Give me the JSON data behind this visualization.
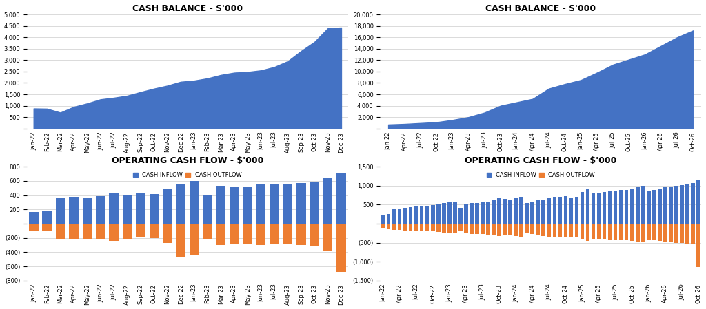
{
  "title_top_left": "CASH BALANCE - $'000",
  "title_top_right": "CASH BALANCE - $'000",
  "title_bot_left": "OPERATING CASH FLOW - $'000",
  "title_bot_right": "OPERATING CASH FLOW - $'000",
  "area_color": "#4472C4",
  "bar_inflow_color": "#4472C4",
  "bar_outflow_color": "#ED7D31",
  "background_color": "#FFFFFF",
  "gridline_color": "#CCCCCC",
  "tl_labels": [
    "Jan-22",
    "Feb-22",
    "Mar-22",
    "Apr-22",
    "May-22",
    "Jun-22",
    "Jul-22",
    "Aug-22",
    "Sep-22",
    "Oct-22",
    "Nov-22",
    "Dec-22",
    "Jan-23",
    "Feb-23",
    "Mar-23",
    "Apr-23",
    "May-23",
    "Jun-23",
    "Jul-23",
    "Aug-23",
    "Sep-23",
    "Oct-23",
    "Nov-23",
    "Dec-23"
  ],
  "tl_values": [
    880,
    870,
    700,
    950,
    1100,
    1280,
    1350,
    1440,
    1600,
    1750,
    1880,
    2050,
    2100,
    2200,
    2350,
    2450,
    2480,
    2550,
    2700,
    2950,
    3400,
    3800,
    4400,
    4430
  ],
  "tr_labels": [
    "Jan-22",
    "Apr-22",
    "Jul-22",
    "Oct-22",
    "Jan-23",
    "Apr-23",
    "Jul-23",
    "Oct-23",
    "Jan-24",
    "Apr-24",
    "Jul-24",
    "Oct-24",
    "Jan-25",
    "Apr-25",
    "Jul-25",
    "Oct-25",
    "Jan-26",
    "Apr-26",
    "Jul-26",
    "Oct-26"
  ],
  "tr_values": [
    700,
    800,
    950,
    1100,
    1500,
    2000,
    2800,
    4000,
    4600,
    5200,
    7000,
    7800,
    8500,
    9800,
    11200,
    12100,
    13000,
    14500,
    16000,
    17200
  ],
  "bl_labels": [
    "Jan-22",
    "Feb-22",
    "Mar-22",
    "Apr-22",
    "May-22",
    "Jun-22",
    "Jul-22",
    "Aug-22",
    "Sep-22",
    "Oct-22",
    "Nov-22",
    "Dec-22",
    "Jan-23",
    "Feb-23",
    "Mar-23",
    "Apr-23",
    "May-23",
    "Jun-23",
    "Jul-23",
    "Aug-23",
    "Sep-23",
    "Oct-23",
    "Nov-23",
    "Dec-23"
  ],
  "bl_inflow": [
    160,
    180,
    360,
    380,
    365,
    385,
    430,
    395,
    420,
    410,
    480,
    560,
    595,
    395,
    530,
    510,
    520,
    550,
    560,
    560,
    570,
    580,
    640,
    710
  ],
  "bl_outflow": [
    -100,
    -110,
    -210,
    -215,
    -210,
    -225,
    -240,
    -210,
    -195,
    -200,
    -275,
    -465,
    -450,
    -215,
    -305,
    -290,
    -295,
    -300,
    -295,
    -295,
    -300,
    -310,
    -385,
    -680
  ],
  "br_labels": [
    "Jan-22",
    "Feb-22",
    "Mar-22",
    "Apr-22",
    "May-22",
    "Jun-22",
    "Jul-22",
    "Aug-22",
    "Sep-22",
    "Oct-22",
    "Nov-22",
    "Dec-22",
    "Jan-23",
    "Feb-23",
    "Mar-23",
    "Apr-23",
    "May-23",
    "Jun-23",
    "Jul-23",
    "Aug-23",
    "Sep-23",
    "Oct-23",
    "Nov-23",
    "Dec-23",
    "Jan-24",
    "Feb-24",
    "Mar-24",
    "Apr-24",
    "May-24",
    "Jun-24",
    "Jul-24",
    "Aug-24",
    "Sep-24",
    "Oct-24",
    "Nov-24",
    "Dec-24",
    "Jan-25",
    "Feb-25",
    "Mar-25",
    "Apr-25",
    "May-25",
    "Jun-25",
    "Jul-25",
    "Aug-25",
    "Sep-25",
    "Oct-25",
    "Nov-25",
    "Dec-25",
    "Jan-26",
    "Feb-26",
    "Mar-26",
    "Apr-26",
    "May-26",
    "Jun-26",
    "Jul-26",
    "Aug-26",
    "Sep-26",
    "Oct-26"
  ],
  "br_inflow": [
    220,
    260,
    380,
    400,
    420,
    440,
    450,
    460,
    470,
    480,
    500,
    540,
    560,
    580,
    420,
    520,
    540,
    550,
    560,
    580,
    630,
    670,
    650,
    640,
    680,
    700,
    540,
    560,
    620,
    640,
    680,
    700,
    710,
    720,
    680,
    700,
    840,
    900,
    820,
    820,
    840,
    860,
    870,
    880,
    890,
    900,
    960,
    1000,
    860,
    880,
    900,
    950,
    980,
    1000,
    1020,
    1040,
    1060,
    1140
  ],
  "br_outflow": [
    -120,
    -140,
    -160,
    -170,
    -175,
    -180,
    -190,
    -195,
    -200,
    -205,
    -215,
    -230,
    -240,
    -250,
    -200,
    -260,
    -270,
    -275,
    -280,
    -290,
    -310,
    -320,
    -315,
    -310,
    -330,
    -340,
    -260,
    -280,
    -310,
    -320,
    -340,
    -350,
    -355,
    -360,
    -340,
    -350,
    -420,
    -450,
    -410,
    -410,
    -420,
    -430,
    -435,
    -440,
    -445,
    -450,
    -480,
    -490,
    -440,
    -440,
    -450,
    -475,
    -490,
    -500,
    -510,
    -520,
    -530,
    -1150
  ],
  "br_xtick_labels": [
    "Jan-22",
    "Apr-22",
    "Jul-22",
    "Oct-22",
    "Jan-23",
    "Apr-23",
    "Jul-23",
    "Oct-23",
    "Jan-24",
    "Apr-24",
    "Jul-24",
    "Oct-24",
    "Jan-25",
    "Apr-25",
    "Jul-25",
    "Oct-25",
    "Jan-26",
    "Apr-26",
    "Jul-26",
    "Oct-26"
  ],
  "br_xtick_positions": [
    0,
    3,
    6,
    9,
    12,
    15,
    18,
    21,
    24,
    27,
    30,
    33,
    36,
    39,
    42,
    45,
    48,
    51,
    54,
    57
  ],
  "legend_inflow": "CASH INFLOW",
  "legend_outflow": "CASH OUTFLOW"
}
